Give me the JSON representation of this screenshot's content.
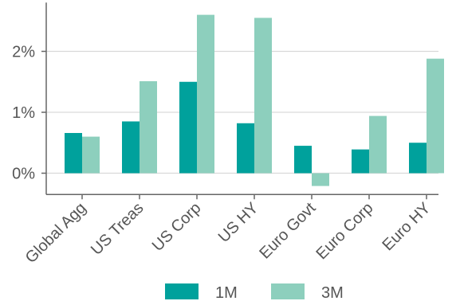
{
  "chart_data": {
    "type": "bar",
    "title": "",
    "xlabel": "",
    "ylabel": "",
    "categories": [
      "Global Agg",
      "US Treas",
      "US Corp",
      "US HY",
      "Euro Govt",
      "Euro Corp",
      "Euro HY"
    ],
    "series": [
      {
        "name": "1M",
        "color": "#00a19c",
        "values": [
          0.66,
          0.85,
          1.5,
          0.82,
          0.45,
          0.39,
          0.5
        ]
      },
      {
        "name": "3M",
        "color": "#8dcfbd",
        "values": [
          0.6,
          1.51,
          2.6,
          2.55,
          -0.21,
          0.94,
          1.88
        ]
      }
    ],
    "ylim": [
      -0.35,
      2.8
    ],
    "yticks": [
      0,
      1,
      2
    ],
    "ytick_labels": [
      "0%",
      "1%",
      "2%"
    ],
    "grid": "horizontal",
    "legend_position": "bottom-center"
  }
}
